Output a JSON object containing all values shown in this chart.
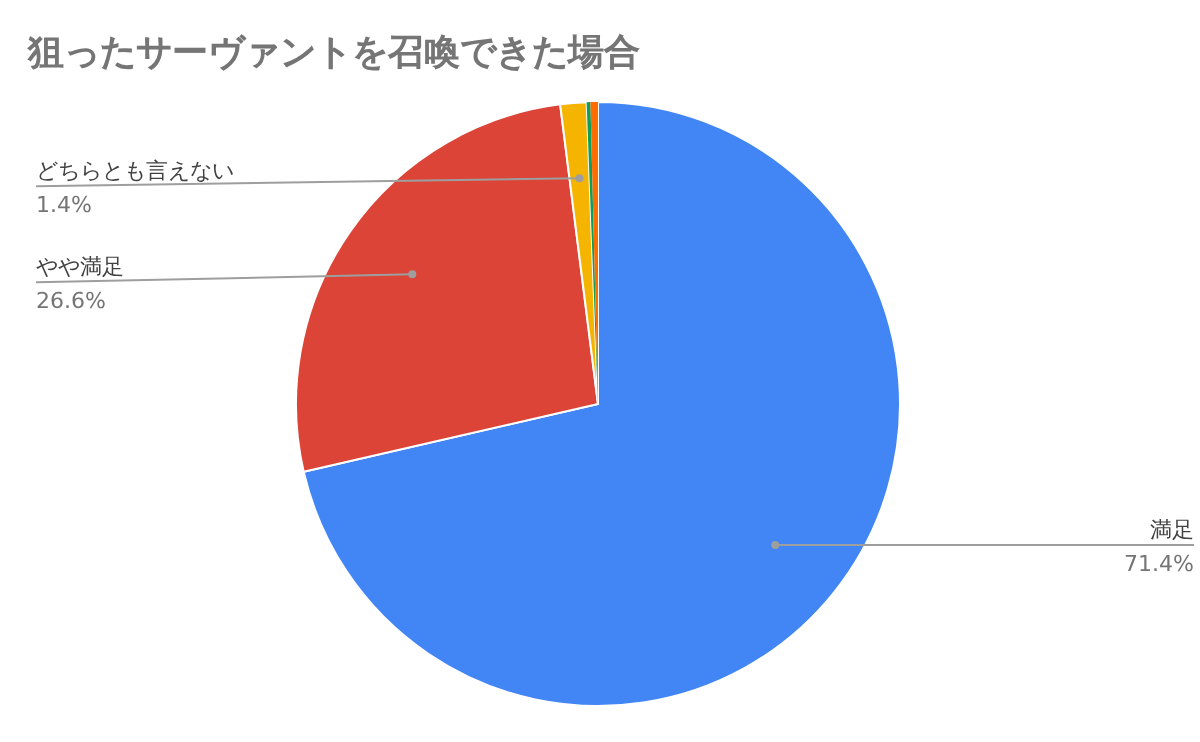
{
  "chart_data": {
    "type": "pie",
    "title": "狙ったサーヴァントを召喚できた場合",
    "categories": [
      "満足",
      "やや満足",
      "どちらとも言えない",
      null,
      null
    ],
    "values": [
      71.4,
      26.6,
      1.4,
      0.2,
      0.4
    ],
    "colors": [
      "#4285f4",
      "#db4437",
      "#f4b400",
      "#0f9d58",
      "#ff6d01"
    ],
    "value_labels": [
      "71.4%",
      "26.6%",
      "1.4%",
      null,
      null
    ],
    "legend": false
  }
}
